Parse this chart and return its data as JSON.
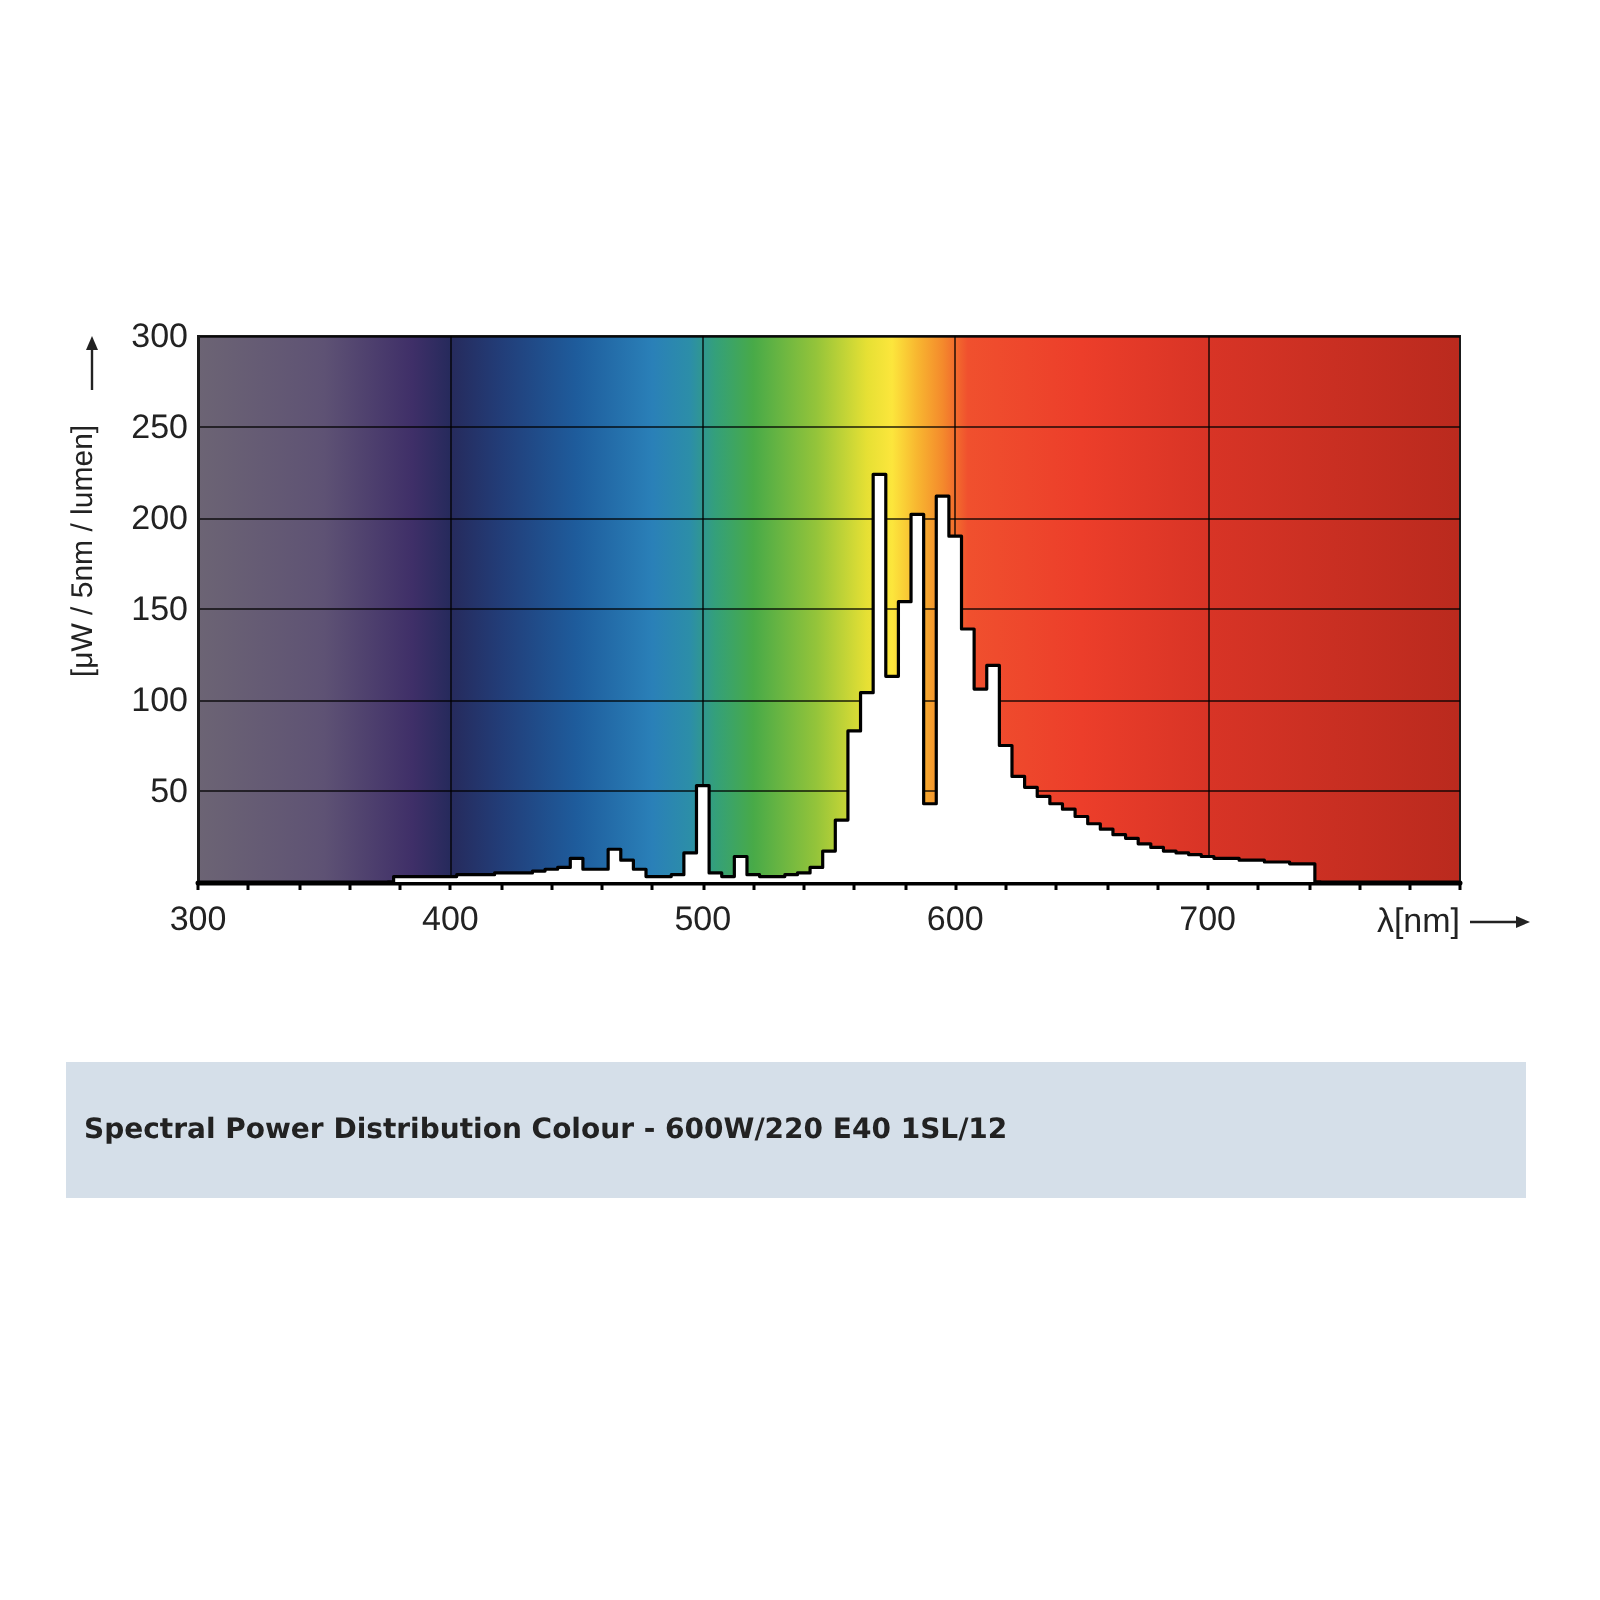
{
  "chart_data": {
    "type": "step",
    "title": "Spectral Power Distribution Colour - 600W/220 E40 1SL/12",
    "xlabel": "λ[nm]",
    "ylabel": "[μW / 5nm / lumen]",
    "x": [
      375,
      380,
      385,
      390,
      395,
      400,
      405,
      410,
      415,
      420,
      425,
      430,
      435,
      440,
      445,
      450,
      455,
      460,
      465,
      470,
      475,
      480,
      485,
      490,
      495,
      500,
      505,
      510,
      515,
      520,
      525,
      530,
      535,
      540,
      545,
      550,
      555,
      560,
      565,
      570,
      575,
      580,
      585,
      590,
      595,
      600,
      605,
      610,
      615,
      620,
      625,
      630,
      635,
      640,
      645,
      650,
      655,
      660,
      665,
      670,
      675,
      680,
      685,
      690,
      695,
      700,
      705,
      710,
      715,
      720,
      725,
      730,
      735,
      740,
      745
    ],
    "values": [
      0,
      3,
      3,
      3,
      3,
      3,
      4,
      4,
      4,
      5,
      5,
      5,
      6,
      7,
      8,
      13,
      7,
      7,
      18,
      12,
      7,
      3,
      3,
      4,
      16,
      53,
      5,
      3,
      14,
      4,
      3,
      3,
      4,
      5,
      8,
      17,
      34,
      83,
      104,
      224,
      113,
      154,
      202,
      43,
      212,
      190,
      139,
      106,
      119,
      75,
      58,
      52,
      47,
      43,
      40,
      36,
      32,
      29,
      26,
      24,
      21,
      19,
      17,
      16,
      15,
      14,
      13,
      13,
      12,
      12,
      11,
      11,
      10,
      10,
      0
    ],
    "color": "#000000",
    "marker": "none",
    "xlim": [
      300,
      800
    ],
    "xticks": [
      300,
      {
        "value": 320,
        "label": null
      },
      {
        "value": 340,
        "label": null
      },
      {
        "value": 360,
        "label": null
      },
      {
        "value": 380,
        "label": null
      },
      400,
      {
        "value": 420,
        "label": null
      },
      {
        "value": 440,
        "label": null
      },
      {
        "value": 460,
        "label": null
      },
      {
        "value": 480,
        "label": null
      },
      500,
      {
        "value": 520,
        "label": null
      },
      {
        "value": 540,
        "label": null
      },
      {
        "value": 560,
        "label": null
      },
      {
        "value": 580,
        "label": null
      },
      600,
      {
        "value": 620,
        "label": null
      },
      {
        "value": 640,
        "label": null
      },
      {
        "value": 660,
        "label": null
      },
      {
        "value": 680,
        "label": null
      },
      700,
      {
        "value": 720,
        "label": null
      },
      {
        "value": 740,
        "label": null
      },
      {
        "value": 760,
        "label": null
      },
      {
        "value": 780,
        "label": null
      },
      {
        "value": 800,
        "label": null
      }
    ],
    "ylim": [
      0,
      300
    ],
    "yticks": [
      50,
      100,
      150,
      200,
      250,
      300
    ],
    "grid": true
  }
}
